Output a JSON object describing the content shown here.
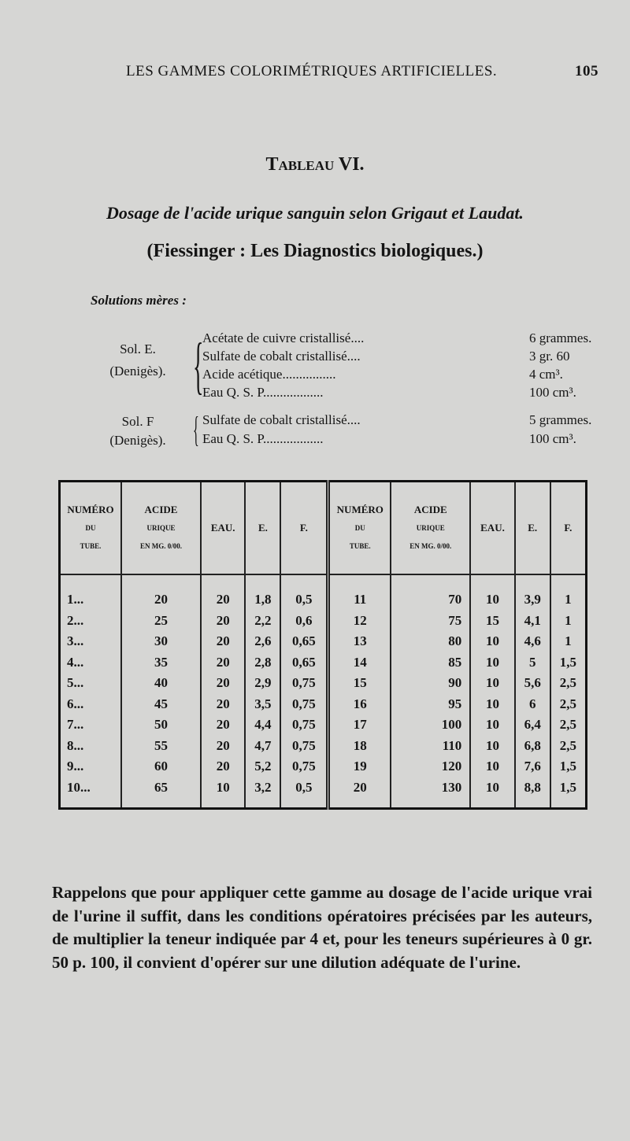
{
  "header": {
    "running_title": "LES GAMMES COLORIMÉTRIQUES ARTIFICIELLES.",
    "page_number": "105"
  },
  "table_title": "Tableau VI.",
  "subtitle": "Dosage de l'acide urique sanguin selon Grigaut et Laudat.",
  "source": "(Fiessinger : Les Diagnostics biologiques.)",
  "solutions_label": "Solutions mères :",
  "sol_e": {
    "name": "Sol. E.",
    "author": "(Denigès).",
    "items": [
      {
        "item": "Acétate de cuivre cristallisé....",
        "qty": "6 grammes."
      },
      {
        "item": "Sulfate de cobalt cristallisé....",
        "qty": "3 gr. 60"
      },
      {
        "item": "Acide acétique................",
        "qty": "4 cm³."
      },
      {
        "item": "Eau Q. S. P..................",
        "qty": "100 cm³."
      }
    ]
  },
  "sol_f": {
    "name": "Sol. F",
    "author": "(Denigès).",
    "items": [
      {
        "item": "Sulfate de cobalt cristallisé....",
        "qty": "5 grammes."
      },
      {
        "item": "Eau Q. S. P..................",
        "qty": "100 cm³."
      }
    ]
  },
  "table": {
    "headers": {
      "numero": [
        "NUMÉRO",
        "DU",
        "TUBE."
      ],
      "acide": [
        "ACIDE",
        "URIQUE",
        "EN MG. 0/00."
      ],
      "eau": "EAU.",
      "e": "E.",
      "f": "F."
    },
    "rows": [
      {
        "a": [
          "1...",
          "20",
          "20",
          "1,8",
          "0,5"
        ],
        "b": [
          "11",
          "70",
          "10",
          "3,9",
          "1"
        ]
      },
      {
        "a": [
          "2...",
          "25",
          "20",
          "2,2",
          "0,6"
        ],
        "b": [
          "12",
          "75",
          "15",
          "4,1",
          "1"
        ]
      },
      {
        "a": [
          "3...",
          "30",
          "20",
          "2,6",
          "0,65"
        ],
        "b": [
          "13",
          "80",
          "10",
          "4,6",
          "1"
        ]
      },
      {
        "a": [
          "4...",
          "35",
          "20",
          "2,8",
          "0,65"
        ],
        "b": [
          "14",
          "85",
          "10",
          "5",
          "1,5"
        ]
      },
      {
        "a": [
          "5...",
          "40",
          "20",
          "2,9",
          "0,75"
        ],
        "b": [
          "15",
          "90",
          "10",
          "5,6",
          "2,5"
        ]
      },
      {
        "a": [
          "6...",
          "45",
          "20",
          "3,5",
          "0,75"
        ],
        "b": [
          "16",
          "95",
          "10",
          "6",
          "2,5"
        ]
      },
      {
        "a": [
          "7...",
          "50",
          "20",
          "4,4",
          "0,75"
        ],
        "b": [
          "17",
          "100",
          "10",
          "6,4",
          "2,5"
        ]
      },
      {
        "a": [
          "8...",
          "55",
          "20",
          "4,7",
          "0,75"
        ],
        "b": [
          "18",
          "110",
          "10",
          "6,8",
          "2,5"
        ]
      },
      {
        "a": [
          "9...",
          "60",
          "20",
          "5,2",
          "0,75"
        ],
        "b": [
          "19",
          "120",
          "10",
          "7,6",
          "1,5"
        ]
      },
      {
        "a": [
          "10...",
          "65",
          "10",
          "3,2",
          "0,5"
        ],
        "b": [
          "20",
          "130",
          "10",
          "8,8",
          "1,5"
        ]
      }
    ]
  },
  "paragraph": "Rappelons que pour appliquer cette gamme au dosage de l'acide urique vrai de l'urine il suffit, dans les conditions opératoires précisées par les auteurs, de multiplier la teneur indiquée par 4 et, pour les teneurs supérieures à 0 gr. 50 p. 100, il convient d'opérer sur une dilution adéquate de l'urine."
}
